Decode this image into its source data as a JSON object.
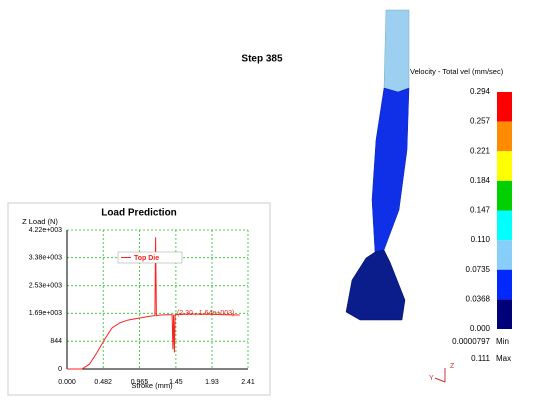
{
  "step_label": "Step  385",
  "legend": {
    "title": "Velocity - Total vel (mm/sec)",
    "labels": [
      "0.294",
      "0.257",
      "0.221",
      "0.184",
      "0.147",
      "0.110",
      "0.0735",
      "0.0368",
      "0.000"
    ],
    "colors": [
      "#ff0000",
      "#ff8c00",
      "#ffff00",
      "#00d000",
      "#00ffff",
      "#87cefa",
      "#0028ff",
      "#00007a"
    ],
    "min_value": "0.0000797",
    "min_label": "Min",
    "max_value": "0.111",
    "max_label": "Max"
  },
  "axes_triad": {
    "y": "Y",
    "z": "Z"
  },
  "chart_data": {
    "type": "line",
    "title": "Load Prediction",
    "x_label": "Stroke (mm)",
    "y_label": "Z Load (N)",
    "x": [
      0,
      0.2,
      0.3,
      0.4,
      0.5,
      0.6,
      0.7,
      0.8,
      0.9,
      1.0,
      1.1,
      1.17,
      1.18,
      1.19,
      1.25,
      1.35,
      1.4,
      1.41,
      1.42,
      1.43,
      1.44,
      1.5,
      1.7,
      1.9,
      2.1,
      2.3
    ],
    "series": [
      {
        "name": "Top Die",
        "color": "#ff2020",
        "values": [
          0,
          0,
          150,
          500,
          900,
          1250,
          1400,
          1480,
          1520,
          1560,
          1600,
          1620,
          4000,
          1620,
          1640,
          1650,
          1650,
          600,
          1650,
          500,
          1650,
          1660,
          1670,
          1660,
          1650,
          1640
        ]
      }
    ],
    "annotation": "(2.30 , 1.64e+003)",
    "xlim": [
      0,
      2.41
    ],
    "ylim": [
      0,
      4220
    ],
    "xticks": [
      {
        "value": 0,
        "label": "0.000"
      },
      0.482,
      0.965,
      1.45,
      1.93,
      2.41
    ],
    "yticks": [
      0,
      844,
      {
        "value": 1690,
        "label": "1.69e+003"
      },
      {
        "value": 2530,
        "label": "2.53e+003"
      },
      {
        "value": 3380,
        "label": "3.38e+003"
      },
      {
        "value": 4220,
        "label": "4.22e+003"
      }
    ],
    "grid": true
  }
}
